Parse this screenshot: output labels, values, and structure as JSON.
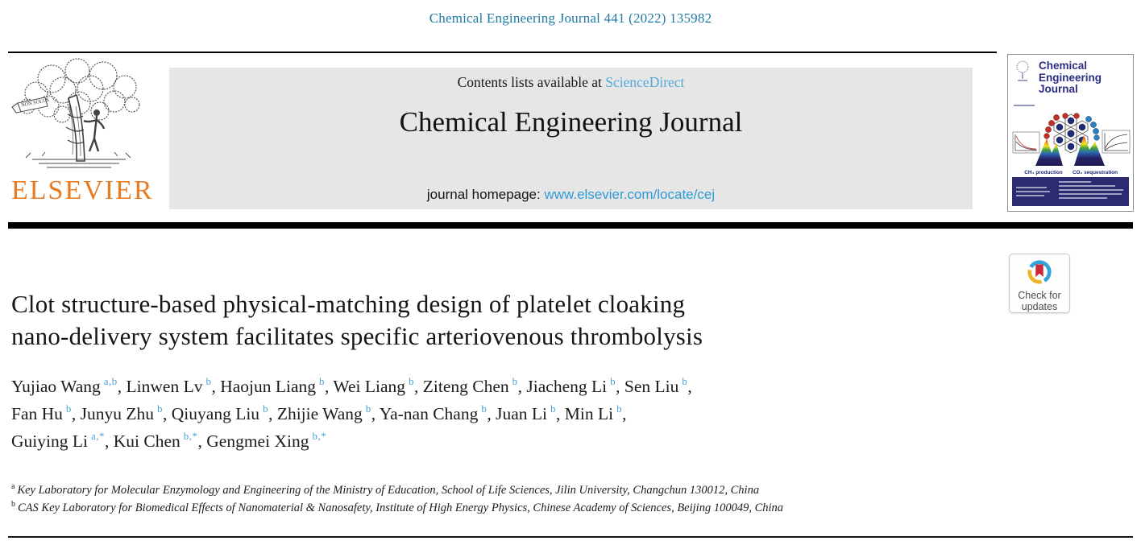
{
  "page": {
    "citation": "Chemical Engineering Journal 441 (2022) 135982"
  },
  "banner": {
    "contents_prefix": "Contents lists available at ",
    "contents_link": "ScienceDirect",
    "journal_name": "Chemical Engineering Journal",
    "homepage_prefix": "journal homepage: ",
    "homepage_link": "www.elsevier.com/locate/cej"
  },
  "publisher": {
    "name": "ELSEVIER",
    "logo_banner_text": "NON SOLUS"
  },
  "cover": {
    "title": "Chemical Engineering Journal",
    "label_left": "CH₄ production",
    "label_right": "CO₂ sequestration"
  },
  "badge": {
    "line1": "Check for",
    "line2": "updates"
  },
  "article": {
    "title_lines": [
      "Clot structure-based physical-matching design of platelet cloaking",
      "nano-delivery system facilitates specific arteriovenous thrombolysis"
    ],
    "author_lines": [
      {
        "authors": [
          {
            "name": "Yujiao Wang",
            "sup": "a,b"
          },
          {
            "name": "Linwen Lv",
            "sup": "b"
          },
          {
            "name": "Haojun Liang",
            "sup": "b"
          },
          {
            "name": "Wei Liang",
            "sup": "b"
          },
          {
            "name": "Ziteng Chen",
            "sup": "b"
          },
          {
            "name": "Jiacheng Li",
            "sup": "b"
          },
          {
            "name": "Sen Liu",
            "sup": "b"
          }
        ],
        "end": ","
      },
      {
        "authors": [
          {
            "name": "Fan Hu",
            "sup": "b"
          },
          {
            "name": "Junyu Zhu",
            "sup": "b"
          },
          {
            "name": "Qiuyang Liu",
            "sup": "b"
          },
          {
            "name": "Zhijie Wang",
            "sup": "b"
          },
          {
            "name": "Ya-nan Chang",
            "sup": "b"
          },
          {
            "name": "Juan Li",
            "sup": "b"
          },
          {
            "name": "Min Li",
            "sup": "b"
          }
        ],
        "end": ","
      },
      {
        "authors": [
          {
            "name": "Guiying Li",
            "sup": "a,*"
          },
          {
            "name": "Kui Chen",
            "sup": "b,*"
          },
          {
            "name": "Gengmei Xing",
            "sup": "b,*"
          }
        ],
        "end": ""
      }
    ],
    "affiliations": [
      {
        "sup": "a",
        "text": "Key Laboratory for Molecular Enzymology and Engineering of the Ministry of Education, School of Life Sciences, Jilin University, Changchun 130012, China"
      },
      {
        "sup": "b",
        "text": "CAS Key Laboratory for Biomedical Effects of Nanomaterial & Nanosafety, Institute of High Energy Physics, Chinese Academy of Sciences, Beijing 100049, China"
      }
    ]
  },
  "colors": {
    "citation_teal": "#1f7aa6",
    "link_light_blue": "#55a9d9",
    "homepage_link_blue": "#2f9bd6",
    "superscript_blue": "#4aa1d6",
    "elsevier_orange": "#e87b22",
    "banner_gray": "#e6e6e6",
    "cover_navy": "#2b2e83",
    "badge_red": "#cc2936",
    "badge_yellow": "#f0b62a",
    "badge_blue": "#33a3dc"
  }
}
